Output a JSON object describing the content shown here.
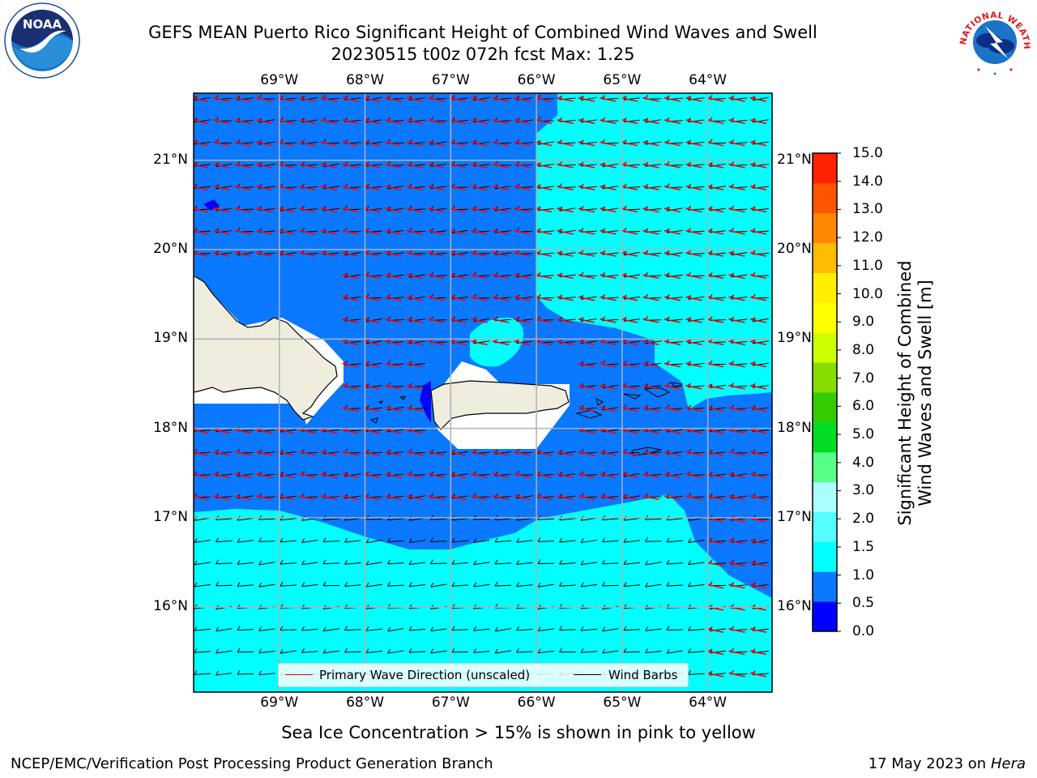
{
  "title_line1": "GEFS MEAN Puerto Rico Significant Height of Combined Wind Waves and Swell",
  "title_line2": "20230515 t00z 072h fcst   Max: 1.25",
  "map": {
    "lon_ticks": [
      "69°W",
      "68°W",
      "67°W",
      "66°W",
      "65°W",
      "64°W"
    ],
    "lat_ticks": [
      "21°N",
      "20°N",
      "19°N",
      "18°N",
      "17°N",
      "16°N"
    ],
    "lon_values": [
      -69,
      -68,
      -67,
      -66,
      -65,
      -64
    ],
    "lat_values": [
      21,
      20,
      19,
      18,
      17,
      16
    ],
    "lon_range": [
      -70,
      -63.25
    ],
    "lat_range": [
      15.05,
      21.75
    ],
    "grid": true,
    "land_color": "#efedde",
    "ocean_wave_colors": {
      "0.5-1.0": "#0a78ff",
      "1.0-1.5": "#00ffff",
      "0.0-0.5": "#0000ff"
    }
  },
  "colorbar": {
    "label": "Significant Height of Combined Wind Waves and Swell [m]",
    "label_line1": "Significant Height of Combined",
    "label_line2": "Wind Waves and Swell [m]",
    "ticks": [
      "15.0",
      "14.0",
      "13.0",
      "12.0",
      "11.0",
      "10.0",
      "9.0",
      "8.0",
      "7.0",
      "6.0",
      "5.0",
      "4.0",
      "3.0",
      "2.0",
      "1.5",
      "1.0",
      "0.5",
      "0.0"
    ],
    "colors_bottom_to_top": [
      "#0000ff",
      "#0a78ff",
      "#00ffff",
      "#55ffff",
      "#aaffff",
      "#55ff88",
      "#00dd22",
      "#33cc00",
      "#88dd00",
      "#ccff00",
      "#ffff00",
      "#ffee00",
      "#ffbb00",
      "#ff8800",
      "#ff5500",
      "#ff2200"
    ]
  },
  "legend": {
    "primary_wave": "Primary Wave Direction (unscaled)",
    "wind_barbs": "Wind Barbs",
    "primary_wave_color": "#ff0000",
    "wind_barbs_color": "#000000"
  },
  "sea_ice_note": "Sea Ice Concentration > 15% is shown in pink to yellow",
  "footer_left": "NCEP/EMC/Verification Post Processing Product Generation Branch",
  "footer_right_date": "17 May 2023 on",
  "footer_right_host": "Hera",
  "logos": {
    "left": "noaa-logo",
    "right": "nws-logo",
    "noaa_text": "NOAA",
    "nws_text": "NATIONAL WEATHER SERVICE"
  }
}
